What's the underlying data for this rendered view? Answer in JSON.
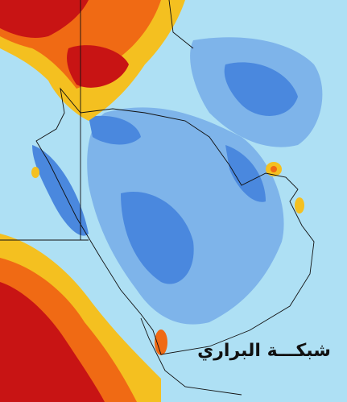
{
  "watermark": "شبكـــة البراري"
}
